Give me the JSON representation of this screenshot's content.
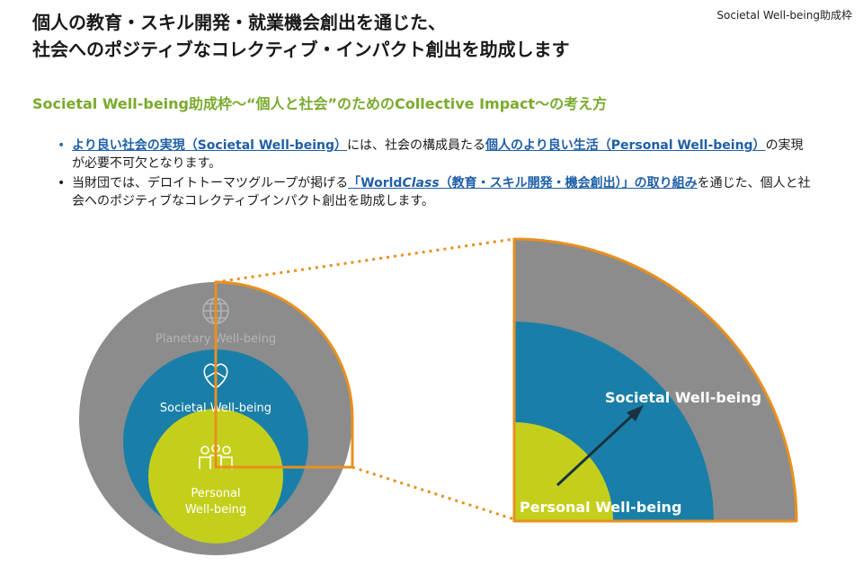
{
  "tag": "Societal Well-being助成枠",
  "title": {
    "line1": "個人の教育・スキル開発・就業機会創出を通じた、",
    "line2": "社会へのポジティブなコレクティブ・インパクト創出を助成します"
  },
  "subtitle": "Societal Well-being助成枠～“個人と社会”のためのCollective Impact～の考え方",
  "bullets": [
    {
      "link1": "より良い社会の実現（Societal Well-being）",
      "text1": "には、社会の構成員たる",
      "link2": "個人のより良い生活（Personal Well-being）",
      "text2": "の実現が必要不可欠となります。"
    },
    {
      "text1": "当財団では、デロイトトーマツグループが掲げる",
      "link1a": "「World",
      "link1b": "Class",
      "link1c": "（教育・スキル開発・機会創出）」の取り組み",
      "text2": "を通じた、個人と社会へのポジティブなコレクティブインパクト創出を助成します。"
    }
  ],
  "diagram": {
    "planetary_label": "Planetary Well-being",
    "societal_label": "Societal Well-being",
    "personal_label_line1": "Personal",
    "personal_label_line2": "Well-being",
    "zoom_societal_label": "Societal Well-being",
    "zoom_personal_label": "Personal Well-being",
    "colors": {
      "planetary": "#8c8c8c",
      "societal": "#1a7fa8",
      "personal": "#c4cf1c",
      "highlight": "#e8901f"
    }
  }
}
